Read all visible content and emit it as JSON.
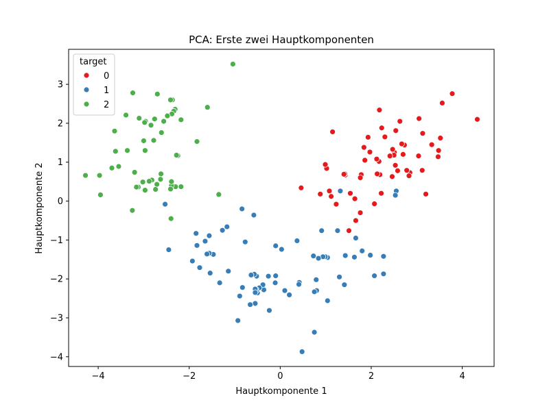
{
  "chart_data": {
    "type": "scatter",
    "title": "PCA: Erste zwei Hauptkomponenten",
    "xlabel": "Hauptkomponente 1",
    "ylabel": "Hauptkomponente 2",
    "xlim": [
      -4.65,
      4.7
    ],
    "ylim": [
      -4.25,
      3.9
    ],
    "xticks": [
      -4,
      -2,
      0,
      2,
      4
    ],
    "yticks": [
      -4,
      -3,
      -2,
      -1,
      0,
      1,
      2,
      3
    ],
    "grid": false,
    "legend": {
      "title": "target",
      "placement": "top-left",
      "entries": [
        {
          "label": "0",
          "color": "#e41a1c"
        },
        {
          "label": "1",
          "color": "#377eb8"
        },
        {
          "label": "2",
          "color": "#4daf4a"
        }
      ]
    },
    "series": [
      {
        "name": "0",
        "color": "#e41a1c",
        "points": [
          [
            4.33,
            2.1
          ],
          [
            3.78,
            2.76
          ],
          [
            3.56,
            2.52
          ],
          [
            3.52,
            1.62
          ],
          [
            3.48,
            1.3
          ],
          [
            3.47,
            1.14
          ],
          [
            3.33,
            1.45
          ],
          [
            3.2,
            0.18
          ],
          [
            3.13,
            1.74
          ],
          [
            3.12,
            0.79
          ],
          [
            3.05,
            2.12
          ],
          [
            3.04,
            1.16
          ],
          [
            2.85,
            0.73
          ],
          [
            2.83,
            0.65
          ],
          [
            2.78,
            0.79
          ],
          [
            2.73,
            1.44
          ],
          [
            2.7,
            1.2
          ],
          [
            2.67,
            1.47
          ],
          [
            2.63,
            2.05
          ],
          [
            2.58,
            0.78
          ],
          [
            2.53,
            0.92
          ],
          [
            2.51,
            1.25
          ],
          [
            2.54,
            1.81
          ],
          [
            2.5,
            1.18
          ],
          [
            2.47,
            1.33
          ],
          [
            2.46,
            0.63
          ],
          [
            2.41,
            1.16
          ],
          [
            2.3,
            1.65
          ],
          [
            2.23,
            1.88
          ],
          [
            2.22,
            0.2
          ],
          [
            2.19,
            0.68
          ],
          [
            2.18,
            2.34
          ],
          [
            2.17,
            1.02
          ],
          [
            2.13,
            0.7
          ],
          [
            2.12,
            1.08
          ],
          [
            2.07,
            -0.07
          ],
          [
            1.97,
            1.26
          ],
          [
            1.93,
            1.64
          ],
          [
            1.86,
            1.05
          ],
          [
            1.84,
            1.38
          ],
          [
            1.78,
            0.68
          ],
          [
            1.76,
            0.6
          ],
          [
            1.76,
            -0.3
          ],
          [
            1.66,
            -0.5
          ],
          [
            1.64,
            0.06
          ],
          [
            1.54,
            0.2
          ],
          [
            1.51,
            -0.76
          ],
          [
            1.43,
            0.67
          ],
          [
            1.42,
            0.7
          ],
          [
            1.4,
            0.69
          ],
          [
            1.23,
            -0.08
          ],
          [
            1.15,
            1.78
          ],
          [
            1.12,
            0.12
          ],
          [
            1.08,
            0.26
          ],
          [
            1.02,
            0.84
          ],
          [
            0.99,
            0.94
          ],
          [
            0.88,
            0.18
          ],
          [
            0.46,
            0.34
          ]
        ]
      },
      {
        "name": "1",
        "color": "#377eb8",
        "points": [
          [
            2.55,
            0.26
          ],
          [
            2.53,
            0.15
          ],
          [
            2.27,
            -1.42
          ],
          [
            2.27,
            -1.87
          ],
          [
            2.07,
            -1.92
          ],
          [
            1.98,
            -1.39
          ],
          [
            1.8,
            -1.28
          ],
          [
            1.66,
            -0.95
          ],
          [
            1.63,
            -1.44
          ],
          [
            1.43,
            -1.4
          ],
          [
            1.41,
            -2.15
          ],
          [
            1.32,
            0.26
          ],
          [
            1.26,
            -0.76
          ],
          [
            1.3,
            -1.95
          ],
          [
            1.04,
            -2.56
          ],
          [
            1.04,
            -1.45
          ],
          [
            0.99,
            -1.43
          ],
          [
            0.94,
            -1.43
          ],
          [
            0.91,
            -0.76
          ],
          [
            0.84,
            -1.47
          ],
          [
            0.8,
            -2.3
          ],
          [
            0.79,
            -2.02
          ],
          [
            0.75,
            -2.33
          ],
          [
            0.75,
            -3.37
          ],
          [
            0.73,
            -1.41
          ],
          [
            0.48,
            -3.87
          ],
          [
            0.42,
            -2.09
          ],
          [
            0.41,
            -2.14
          ],
          [
            0.37,
            -1.02
          ],
          [
            0.2,
            -2.41
          ],
          [
            0.1,
            -2.3
          ],
          [
            0.03,
            -1.24
          ],
          [
            -0.1,
            -1.15
          ],
          [
            -0.1,
            -1.92
          ],
          [
            -0.11,
            -2.1
          ],
          [
            -0.26,
            -1.93
          ],
          [
            -0.24,
            -2.81
          ],
          [
            -0.36,
            -2.28
          ],
          [
            -0.38,
            -2.15
          ],
          [
            -0.46,
            -2.23
          ],
          [
            -0.5,
            -2.36
          ],
          [
            -0.52,
            -1.93
          ],
          [
            -0.53,
            -2.27
          ],
          [
            -0.53,
            -2.31
          ],
          [
            -0.55,
            -2.26
          ],
          [
            -0.55,
            -2.35
          ],
          [
            -0.55,
            -2.63
          ],
          [
            -0.57,
            -1.88
          ],
          [
            -0.58,
            -0.36
          ],
          [
            -0.64,
            -1.9
          ],
          [
            -0.66,
            -2.66
          ],
          [
            -0.77,
            -1.05
          ],
          [
            -0.83,
            -2.22
          ],
          [
            -0.84,
            -0.2
          ],
          [
            -0.89,
            -2.44
          ],
          [
            -0.93,
            -3.07
          ],
          [
            -1.14,
            -1.8
          ],
          [
            -1.17,
            -0.66
          ],
          [
            -1.27,
            -0.75
          ],
          [
            -1.33,
            -2.1
          ],
          [
            -1.47,
            -1.37
          ],
          [
            -1.54,
            -1.85
          ],
          [
            -1.56,
            -1.34
          ],
          [
            -1.56,
            -0.89
          ],
          [
            -1.61,
            -1.36
          ],
          [
            -1.65,
            -1.03
          ],
          [
            -1.77,
            -1.71
          ],
          [
            -1.83,
            -1.14
          ],
          [
            -1.85,
            -0.83
          ],
          [
            -1.93,
            -1.54
          ],
          [
            -2.45,
            -1.25
          ],
          [
            -2.53,
            -0.08
          ]
        ]
      },
      {
        "name": "2",
        "color": "#4daf4a",
        "points": [
          [
            -1.04,
            3.52
          ],
          [
            -1.35,
            0.17
          ],
          [
            -1.6,
            2.41
          ],
          [
            -1.83,
            1.53
          ],
          [
            -2.18,
            2.09
          ],
          [
            -2.18,
            0.37
          ],
          [
            -2.25,
            1.17
          ],
          [
            -2.28,
            1.18
          ],
          [
            -2.3,
            0.37
          ],
          [
            -2.31,
            2.36
          ],
          [
            -2.34,
            2.31
          ],
          [
            -2.37,
            2.6
          ],
          [
            -2.38,
            2.24
          ],
          [
            -2.39,
            0.4
          ],
          [
            -2.39,
            0.5
          ],
          [
            -2.4,
            -0.45
          ],
          [
            -2.41,
            0.31
          ],
          [
            -2.41,
            2.6
          ],
          [
            -2.48,
            2.19
          ],
          [
            -2.56,
            2.05
          ],
          [
            -2.61,
            1.76
          ],
          [
            -2.62,
            0.7
          ],
          [
            -2.63,
            0.56
          ],
          [
            -2.7,
            2.75
          ],
          [
            -2.71,
            0.43
          ],
          [
            -2.74,
            0.3
          ],
          [
            -2.76,
            2.11
          ],
          [
            -2.78,
            1.56
          ],
          [
            -2.82,
            0.54
          ],
          [
            -2.84,
            1.95
          ],
          [
            -2.88,
            0.51
          ],
          [
            -2.96,
            2.05
          ],
          [
            -2.97,
            1.3
          ],
          [
            -2.97,
            0.28
          ],
          [
            -2.98,
            2.02
          ],
          [
            -3.0,
            1.55
          ],
          [
            -3.02,
            0.49
          ],
          [
            -3.1,
            2.13
          ],
          [
            -3.12,
            0.36
          ],
          [
            -3.16,
            0.36
          ],
          [
            -3.2,
            0.74
          ],
          [
            -3.24,
            2.78
          ],
          [
            -3.25,
            -0.24
          ],
          [
            -3.36,
            1.3
          ],
          [
            -3.39,
            2.21
          ],
          [
            -3.55,
            0.89
          ],
          [
            -3.62,
            1.28
          ],
          [
            -3.64,
            1.8
          ],
          [
            -3.7,
            0.85
          ],
          [
            -3.95,
            0.16
          ],
          [
            -3.97,
            0.66
          ],
          [
            -4.28,
            0.66
          ]
        ]
      }
    ]
  }
}
